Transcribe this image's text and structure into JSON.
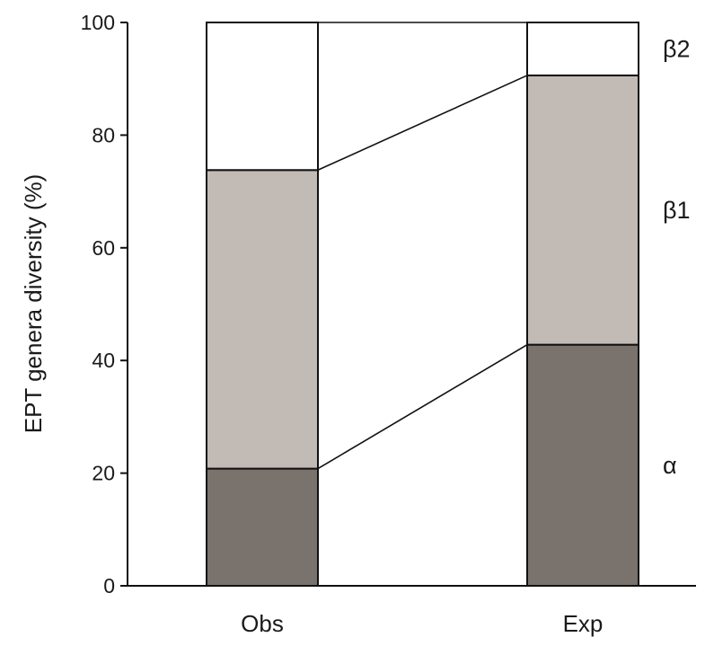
{
  "chart_data": {
    "type": "bar",
    "stacked": true,
    "ylabel": "EPT genera diversity (%)",
    "xlabel": "",
    "ylim": [
      0,
      100
    ],
    "yticks": [
      0,
      20,
      40,
      60,
      80,
      100
    ],
    "categories": [
      "Obs",
      "Exp"
    ],
    "series": [
      {
        "name": "α",
        "color": "#7a726d",
        "values": [
          20.8,
          42.8
        ]
      },
      {
        "name": "β1",
        "color": "#c2bab5",
        "values": [
          53.0,
          47.8
        ]
      },
      {
        "name": "β2",
        "color": "#ffffff",
        "values": [
          26.2,
          9.4
        ]
      }
    ],
    "segment_connectors": true,
    "grid": false,
    "legend": "segment labels right of last bar"
  }
}
